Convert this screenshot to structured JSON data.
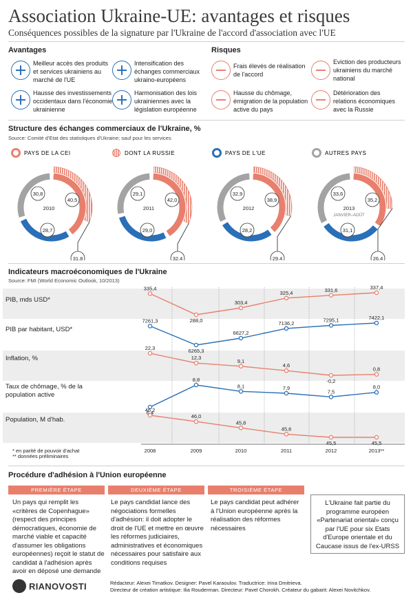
{
  "header": {
    "title": "Association Ukraine-UE: avantages et risques",
    "subtitle": "Conséquences possibles de la signature par l'Ukraine de l'accord d'association avec l'UE"
  },
  "advantages": {
    "heading": "Avantages",
    "items": [
      "Meilleur accès des produits et services ukrainiens au marché de l'UE",
      "Intensification des échanges commerciaux ukraino-européens",
      "Hausse des investissements occidentaux dans l'économie ukrainienne",
      "Harmonisation des lois ukrainiennes avec la législation européenne"
    ]
  },
  "risks": {
    "heading": "Risques",
    "items": [
      "Frais élevés de réalisation de l'accord",
      "Eviction des producteurs ukrainiens du marché national",
      "Hausse du chômage, émigration de la population active du pays",
      "Détérioration des relations économiques avec la Russie"
    ]
  },
  "trade": {
    "heading": "Structure des échanges commerciaux de l'Ukraine, %",
    "source": "Source: Comité d'Etat des statistiques d'Ukraine; sauf pour les services",
    "legend": [
      "PAYS DE LA CEI",
      "DONT LA RUSSIE",
      "PAYS DE L'UE",
      "AUTRES PAYS"
    ],
    "sublabel": "JANVIER–AOÛT"
  },
  "macro": {
    "heading": "Indicateurs macroéconomiques de l'Ukraine",
    "source": "Source: FMI (World Economic Outlook, 10/2013)",
    "years": [
      "2008",
      "2009",
      "2010",
      "2011",
      "2012",
      "2013**"
    ],
    "rows": [
      {
        "label": "PIB, mds USD*",
        "values": [
          "335,4",
          "288,0",
          "303,4",
          "325,4",
          "331,6",
          "337,4"
        ]
      },
      {
        "label": "PIB par habitant, USD*",
        "values": [
          "7261,3",
          "6265,3",
          "6627,2",
          "7136,2",
          "7295,1",
          "7422,1"
        ]
      },
      {
        "label": "Inflation, %",
        "values": [
          "22,3",
          "12,3",
          "9,1",
          "4,6",
          "-0,2",
          "0,8"
        ]
      },
      {
        "label": "Taux de chômage, % de la population active",
        "values": [
          "6,4",
          "8,8",
          "8,1",
          "7,9",
          "7,5",
          "8,0"
        ]
      },
      {
        "label": "Population, M d'hab.",
        "values": [
          "46,2",
          "46,0",
          "45,8",
          "45,6",
          "45,5",
          "45,5"
        ]
      }
    ],
    "note1": "* en parité de pouvoir d'achat",
    "note2": "** données préliminaires"
  },
  "chart_data": [
    {
      "type": "pie",
      "title": "Structure des échanges commerciaux de l'Ukraine, %",
      "categories": [
        "2010",
        "2011",
        "2012",
        "2013"
      ],
      "series": [
        {
          "name": "PAYS DE LA CEI",
          "values": [
            40.5,
            42.0,
            38.9,
            35.2
          ]
        },
        {
          "name": "DONT LA RUSSIE",
          "values": [
            31.8,
            32.4,
            29.4,
            26.4
          ]
        },
        {
          "name": "PAYS DE L'UE",
          "values": [
            28.7,
            29.0,
            28.2,
            31.1
          ]
        },
        {
          "name": "AUTRES PAYS",
          "values": [
            30.8,
            29.1,
            32.9,
            33.6
          ]
        }
      ]
    },
    {
      "type": "line",
      "title": "Indicateurs macroéconomiques de l'Ukraine",
      "categories": [
        "2008",
        "2009",
        "2010",
        "2011",
        "2012",
        "2013**"
      ],
      "series": [
        {
          "name": "PIB, mds USD*",
          "values": [
            335.4,
            288.0,
            303.4,
            325.4,
            331.6,
            337.4
          ]
        },
        {
          "name": "PIB par habitant, USD*",
          "values": [
            7261.3,
            6265.3,
            6627.2,
            7136.2,
            7295.1,
            7422.1
          ]
        },
        {
          "name": "Inflation, %",
          "values": [
            22.3,
            12.3,
            9.1,
            4.6,
            -0.2,
            0.8
          ]
        },
        {
          "name": "Taux de chômage, % de la population active",
          "values": [
            6.4,
            8.8,
            8.1,
            7.9,
            7.5,
            8.0
          ]
        },
        {
          "name": "Population, M d'hab.",
          "values": [
            46.2,
            46.0,
            45.8,
            45.6,
            45.5,
            45.5
          ]
        }
      ]
    }
  ],
  "donut_labels": [
    {
      "year": "2010",
      "cis": "40,5",
      "russia": "31,8",
      "eu": "28,7",
      "other": "30,8"
    },
    {
      "year": "2011",
      "cis": "42,0",
      "russia": "32,4",
      "eu": "29,0",
      "other": "29,1"
    },
    {
      "year": "2012",
      "cis": "38,9",
      "russia": "29,4",
      "eu": "28,2",
      "other": "32,9"
    },
    {
      "year": "2013",
      "cis": "35,2",
      "russia": "26,4",
      "eu": "31,1",
      "other": "33,6"
    }
  ],
  "procedure": {
    "heading": "Procédure d'adhésion à l'Union européenne",
    "steps": [
      {
        "label": "PREMIÈRE ÉTAPE",
        "text": "Un pays qui remplit les «critères de Copenhague» (respect des principes démocratiques, économie de marché viable et capacité d'assumer les obligations européennes) reçoit le statut de candidat à l'adhésion après avoir en déposé une demande"
      },
      {
        "label": "DEUXIÈME ÉTAPE",
        "text": "Le pays candidat lance des négociations formelles d'adhésion: il doit adopter le droit de l'UE et mettre en œuvre les réformes judiciaires, administratives et économiques nécessaires pour satisfaire aux conditions requises"
      },
      {
        "label": "TROISIÈME ÉTAPE",
        "text": "Le pays candidat peut adhérer à l'Union européenne après la réalisation des réformes nécessaires"
      }
    ],
    "box": "L'Ukraine fait partie du programme européen «Partenariat oriental» conçu par l'UE pour six Etats d'Europe orientale et du Caucase issus de l'ex-URSS"
  },
  "footer": {
    "logo": "RIANOVOSTI",
    "line1": "Rédacteur: Alexei Timatkov. Designer: Pavel Karaoulov. Traductrice: Irina Dmitrieva.",
    "line2": "Directeur de création artistique: Ilia Rouderman. Directeur: Pavel Chorokh. Créateur du gabarit: Alexei Novitchkov."
  },
  "colors": {
    "red": "#e87f6d",
    "blue": "#2a6fb7",
    "gray": "#a3a3a3",
    "band": "#ededed"
  }
}
